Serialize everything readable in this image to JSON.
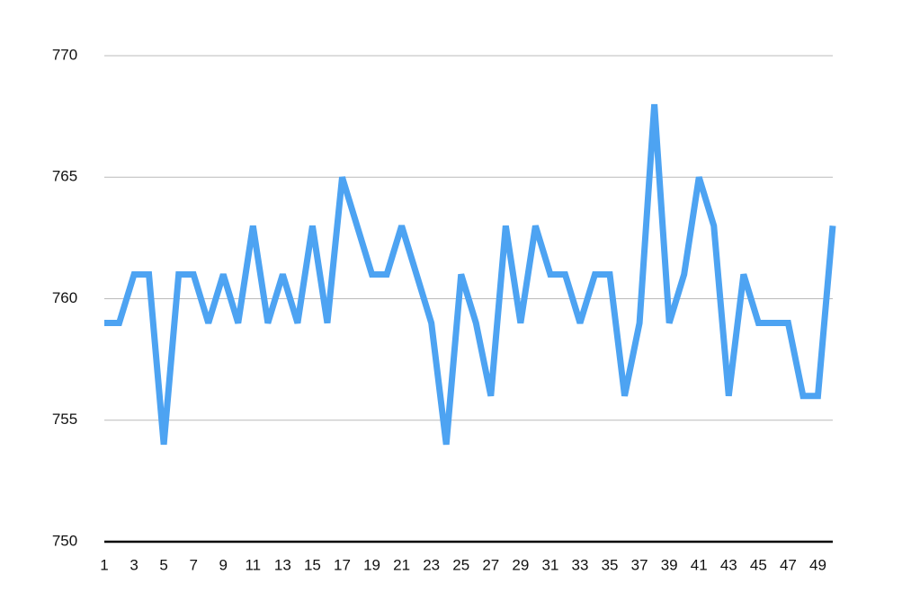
{
  "chart_data": {
    "type": "line",
    "x": [
      1,
      2,
      3,
      4,
      5,
      6,
      7,
      8,
      9,
      10,
      11,
      12,
      13,
      14,
      15,
      16,
      17,
      18,
      19,
      20,
      21,
      22,
      23,
      24,
      25,
      26,
      27,
      28,
      29,
      30,
      31,
      32,
      33,
      34,
      35,
      36,
      37,
      38,
      39,
      40,
      41,
      42,
      43,
      44,
      45,
      46,
      47,
      48,
      49,
      50
    ],
    "xlim": [
      1,
      50
    ],
    "xticks": [
      1,
      3,
      5,
      7,
      9,
      11,
      13,
      15,
      17,
      19,
      21,
      23,
      25,
      27,
      29,
      31,
      33,
      35,
      37,
      39,
      41,
      43,
      45,
      47,
      49
    ],
    "series": [
      {
        "color": "#4da3f2",
        "values": [
          759,
          759,
          761,
          761,
          754,
          761,
          761,
          759,
          761,
          759,
          763,
          759,
          761,
          759,
          763,
          759,
          765,
          763,
          761,
          761,
          763,
          761,
          759,
          754,
          761,
          759,
          756,
          763,
          759,
          763,
          761,
          761,
          759,
          761,
          761,
          756,
          759,
          768,
          759,
          761,
          765,
          763,
          756,
          761,
          759,
          759,
          759,
          756,
          756,
          763
        ]
      }
    ],
    "ylim": [
      750,
      770
    ],
    "yticks": [
      750,
      755,
      760,
      765,
      770
    ],
    "grid": true
  }
}
